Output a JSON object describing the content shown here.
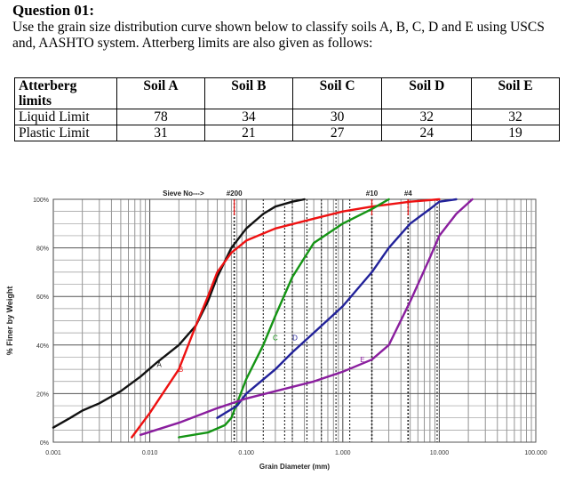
{
  "question": {
    "title": "Question 01:",
    "text": "Use the grain size distribution curve shown below to classify soils A, B, C, D and E using USCS and, AASHTO system. Atterberg limits are also given as follows:"
  },
  "table": {
    "headers": [
      "Atterberg limits",
      "Soil A",
      "Soil B",
      "Soil C",
      "Soil D",
      "Soil E"
    ],
    "rows": [
      {
        "label": "Liquid Limit",
        "values": [
          "78",
          "34",
          "30",
          "32",
          "32"
        ]
      },
      {
        "label": "Plastic Limit",
        "values": [
          "31",
          "21",
          "27",
          "24",
          "19"
        ]
      }
    ]
  },
  "chart_data": {
    "type": "line",
    "xlabel": "Grain Diameter (mm)",
    "ylabel": "% Finer by Weight",
    "x_scale": "log",
    "xlim": [
      0.001,
      100
    ],
    "ylim": [
      0,
      100
    ],
    "grid": true,
    "x_ticks": [
      "0.001",
      "0.010",
      "0.100",
      "1.000",
      "10.000",
      "100.000"
    ],
    "y_ticks": [
      "0%",
      "20%",
      "40%",
      "60%",
      "80%",
      "100%"
    ],
    "sieve_label": "Sieve No--->",
    "sieves": [
      {
        "label": "#200",
        "size": 0.075
      },
      {
        "label": "#10",
        "size": 2.0
      },
      {
        "label": "#4",
        "size": 4.75
      }
    ],
    "series": [
      {
        "name": "A",
        "color": "#111111",
        "label_at": [
          0.0125,
          31
        ],
        "points": [
          [
            0.001,
            6
          ],
          [
            0.0015,
            10
          ],
          [
            0.002,
            13
          ],
          [
            0.003,
            16
          ],
          [
            0.005,
            21
          ],
          [
            0.008,
            27
          ],
          [
            0.012,
            33
          ],
          [
            0.02,
            40
          ],
          [
            0.03,
            48
          ],
          [
            0.04,
            58
          ],
          [
            0.05,
            68
          ],
          [
            0.07,
            80
          ],
          [
            0.1,
            88
          ],
          [
            0.15,
            94
          ],
          [
            0.2,
            97
          ],
          [
            0.3,
            99
          ],
          [
            0.4,
            100
          ]
        ]
      },
      {
        "name": "B",
        "color": "#ee1111",
        "label_at": [
          0.021,
          29
        ],
        "points": [
          [
            0.0065,
            2
          ],
          [
            0.01,
            12
          ],
          [
            0.02,
            30
          ],
          [
            0.03,
            48
          ],
          [
            0.04,
            60
          ],
          [
            0.05,
            70
          ],
          [
            0.07,
            78
          ],
          [
            0.1,
            83
          ],
          [
            0.2,
            88
          ],
          [
            0.5,
            92
          ],
          [
            1,
            95
          ],
          [
            2,
            97
          ],
          [
            5,
            99
          ],
          [
            10,
            100
          ]
        ]
      },
      {
        "name": "C",
        "color": "#149414",
        "label_at": [
          0.2,
          42
        ],
        "points": [
          [
            0.02,
            2
          ],
          [
            0.04,
            4
          ],
          [
            0.06,
            7
          ],
          [
            0.07,
            10
          ],
          [
            0.08,
            16
          ],
          [
            0.1,
            26
          ],
          [
            0.15,
            40
          ],
          [
            0.2,
            52
          ],
          [
            0.3,
            68
          ],
          [
            0.5,
            82
          ],
          [
            1,
            90
          ],
          [
            2,
            96
          ],
          [
            3,
            100
          ]
        ]
      },
      {
        "name": "D",
        "color": "#22229a",
        "label_at": [
          0.32,
          42
        ],
        "points": [
          [
            0.05,
            10
          ],
          [
            0.08,
            15
          ],
          [
            0.1,
            20
          ],
          [
            0.2,
            30
          ],
          [
            0.3,
            37
          ],
          [
            0.5,
            45
          ],
          [
            1,
            56
          ],
          [
            2,
            70
          ],
          [
            3,
            80
          ],
          [
            5,
            90
          ],
          [
            8,
            96
          ],
          [
            10,
            99
          ],
          [
            15,
            100
          ]
        ]
      },
      {
        "name": "E",
        "color": "#8a1e9e",
        "label_at": [
          1.6,
          33
        ],
        "points": [
          [
            0.008,
            3
          ],
          [
            0.02,
            8
          ],
          [
            0.05,
            14
          ],
          [
            0.1,
            18
          ],
          [
            0.2,
            21
          ],
          [
            0.5,
            25
          ],
          [
            1,
            29
          ],
          [
            2,
            34
          ],
          [
            3,
            40
          ],
          [
            5,
            58
          ],
          [
            8,
            76
          ],
          [
            10,
            85
          ],
          [
            15,
            94
          ],
          [
            22,
            100
          ]
        ]
      }
    ]
  }
}
